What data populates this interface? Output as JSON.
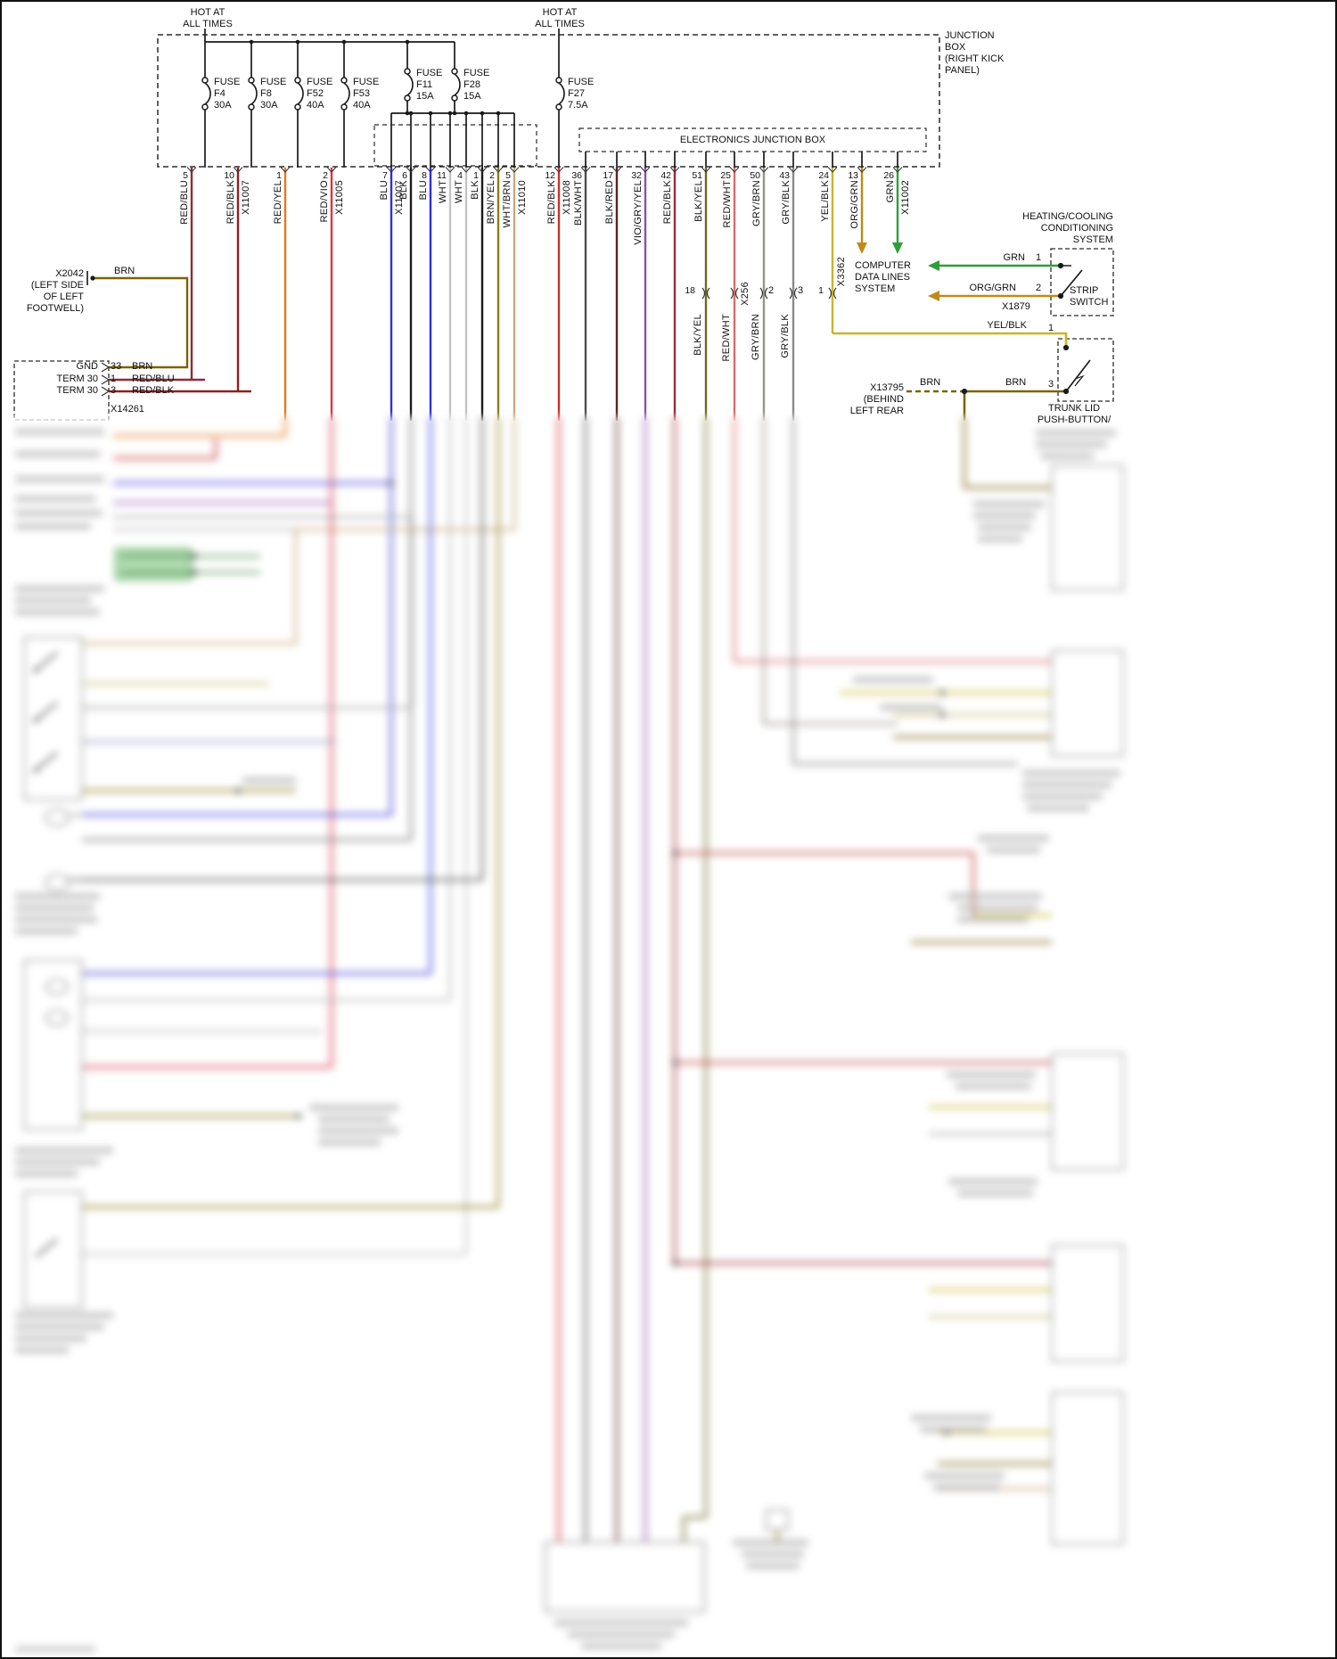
{
  "palette": {
    "background": "#ffffff",
    "line": "#1a1a1a",
    "brn": "#7a6208",
    "grn": "#2f9e38",
    "org_grn": "#c08a1a",
    "yel_blk": "#c9b42a"
  },
  "power": {
    "hot1": [
      "HOT AT",
      "ALL TIMES"
    ],
    "hot2": [
      "HOT AT",
      "ALL TIMES"
    ]
  },
  "junction_box": {
    "label": [
      "JUNCTION",
      "BOX",
      "(RIGHT KICK",
      "PANEL)"
    ],
    "electronics_label": "ELECTRONICS JUNCTION BOX",
    "fuses": [
      {
        "name": "FUSE",
        "id": "F4",
        "amps": "30A"
      },
      {
        "name": "FUSE",
        "id": "F8",
        "amps": "30A"
      },
      {
        "name": "FUSE",
        "id": "F52",
        "amps": "40A"
      },
      {
        "name": "FUSE",
        "id": "F53",
        "amps": "40A"
      },
      {
        "name": "FUSE",
        "id": "F11",
        "amps": "15A"
      },
      {
        "name": "FUSE",
        "id": "F28",
        "amps": "15A"
      },
      {
        "name": "FUSE",
        "id": "F27",
        "amps": "7.5A"
      }
    ]
  },
  "pins": [
    {
      "pin": "5",
      "color": "RED/BLU",
      "connector": "",
      "hex": "#8e2a3c"
    },
    {
      "pin": "10",
      "color": "RED/BLK",
      "connector": "X11007",
      "hex": "#8b2020"
    },
    {
      "pin": "1",
      "color": "RED/YEL",
      "connector": "",
      "hex": "#e2791c"
    },
    {
      "pin": "2",
      "color": "RED/VIO",
      "connector": "X11005",
      "hex": "#d93448"
    },
    {
      "pin": "7",
      "color": "BLU",
      "connector": "X11007",
      "hex": "#2f2fd9"
    },
    {
      "pin": "6",
      "color": "BLK",
      "connector": "",
      "hex": "#1a1a1a"
    },
    {
      "pin": "8",
      "color": "BLU",
      "connector": "",
      "hex": "#2f2fd9"
    },
    {
      "pin": "11",
      "color": "WHT",
      "connector": "",
      "hex": "#c4c4c4"
    },
    {
      "pin": "4",
      "color": "WHT",
      "connector": "",
      "hex": "#c4c4c4"
    },
    {
      "pin": "1",
      "color": "BLK",
      "connector": "",
      "hex": "#1a1a1a"
    },
    {
      "pin": "2",
      "color": "BRN/YEL",
      "connector": "",
      "hex": "#8f7a1a"
    },
    {
      "pin": "5",
      "color": "WHT/BRN",
      "connector": "X11010",
      "hex": "#c9a87c"
    },
    {
      "pin": "12",
      "color": "RED/BLK",
      "connector": "X11008",
      "hex": "#cf2f2f"
    },
    {
      "pin": "36",
      "color": "BLK/WHT",
      "connector": "",
      "hex": "#4d4d4d"
    },
    {
      "pin": "17",
      "color": "BLK/RED",
      "connector": "",
      "hex": "#5c2323"
    },
    {
      "pin": "32",
      "color": "VIO/GRY/YEL",
      "connector": "",
      "hex": "#8d4fa8"
    },
    {
      "pin": "42",
      "color": "RED/BLK",
      "connector": "",
      "hex": "#9c2b33"
    },
    {
      "pin": "51",
      "color": "BLK/YEL",
      "connector": "",
      "hex": "#6e6a1e"
    },
    {
      "pin": "25",
      "color": "RED/WHT",
      "connector": "",
      "hex": "#d96a6a"
    },
    {
      "pin": "50",
      "color": "GRY/BRN",
      "connector": "",
      "hex": "#9a948c"
    },
    {
      "pin": "43",
      "color": "GRY/BLK",
      "connector": "",
      "hex": "#8a8a8a"
    },
    {
      "pin": "24",
      "color": "YEL/BLK",
      "connector": "",
      "hex": "#c9b42a"
    },
    {
      "pin": "13",
      "color": "ORG/GRN",
      "connector": "",
      "hex": "#c08a1a"
    },
    {
      "pin": "26",
      "color": "GRN",
      "connector": "X11002",
      "hex": "#2f9e38"
    }
  ],
  "mid_connectors": {
    "x256": "X256",
    "x3362": "X3362",
    "pin18": "18",
    "pin2": "2",
    "pin3": "3",
    "pin1": "1",
    "labels": [
      "BLK/YEL",
      "RED/WHT",
      "GRY/BRN",
      "GRY/BLK"
    ]
  },
  "computer": {
    "label": [
      "COMPUTER",
      "DATA LINES",
      "SYSTEM"
    ]
  },
  "hvac": {
    "label": [
      "HEATING/COOLING",
      "CONDITIONING",
      "SYSTEM"
    ]
  },
  "strip_switch": {
    "label": [
      "STRIP",
      "SWITCH"
    ],
    "pin1": "1",
    "pin2": "2",
    "wire1": "GRN",
    "wire2": "ORG/GRN",
    "connector": "X1879"
  },
  "trunk": {
    "wire": "YEL/BLK",
    "pin1": "1",
    "pin3": "3",
    "wire_brn_1": "BRN",
    "wire_brn_2": "BRN",
    "connector": "X13795",
    "location": [
      "(BEHIND",
      "LEFT REAR"
    ],
    "label": [
      "TRUNK LID",
      "PUSH-BUTTON/"
    ]
  },
  "left": {
    "x2042": {
      "code": "X2042",
      "location": [
        "(LEFT SIDE",
        "OF LEFT",
        "FOOTWELL)"
      ],
      "wire": "BRN"
    },
    "ground": {
      "rows": [
        {
          "name": "GND",
          "pin": "33",
          "wire": "BRN"
        },
        {
          "name": "TERM 30",
          "pin": "1",
          "wire": "RED/BLU"
        },
        {
          "name": "TERM 30",
          "pin": "3",
          "wire": "RED/BLK"
        }
      ],
      "connector": "X14261"
    }
  }
}
